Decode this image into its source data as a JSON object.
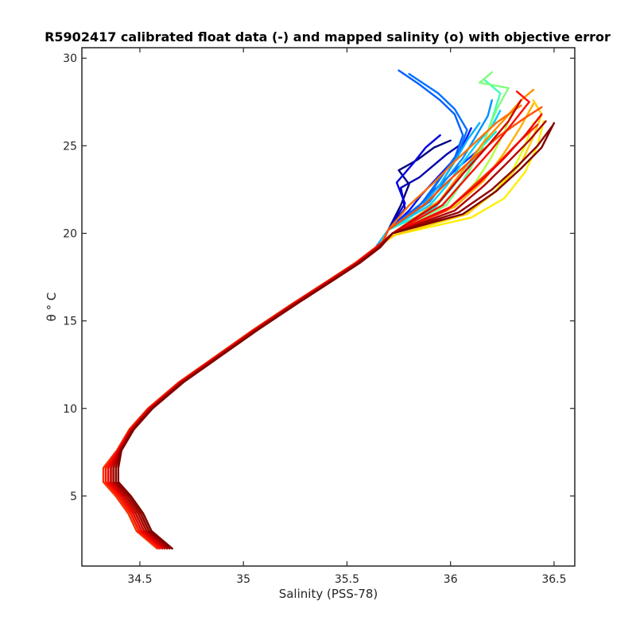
{
  "chart_data": {
    "type": "line",
    "title": "R5902417 calibrated float data (-) and mapped salinity (o) with objective error",
    "xlabel": "Salinity (PSS-78)",
    "ylabel": "θ ° C",
    "xlim": [
      34.22,
      36.6
    ],
    "ylim": [
      1.0,
      30.6
    ],
    "xticks": [
      34.5,
      35,
      35.5,
      36,
      36.5
    ],
    "xtick_labels": [
      "34.5",
      "35",
      "35.5",
      "36",
      "36.5"
    ],
    "yticks": [
      5,
      10,
      15,
      20,
      25,
      30
    ],
    "ytick_labels": [
      "5",
      "10",
      "15",
      "20",
      "25",
      "30"
    ],
    "grid": false,
    "colormap": "jet",
    "common_profile": {
      "s": [
        34.62,
        34.52,
        34.48,
        34.42,
        34.36,
        34.36,
        34.4,
        34.46,
        34.55,
        34.7,
        34.88,
        35.06,
        35.25,
        35.42,
        35.55,
        35.65
      ],
      "t": [
        2.0,
        3.0,
        4.0,
        5.0,
        5.8,
        6.6,
        7.6,
        8.8,
        10.0,
        11.5,
        13.0,
        14.5,
        16.0,
        17.3,
        18.3,
        19.2
      ]
    },
    "series": [
      {
        "color": "#000080",
        "s": [
          35.7,
          35.76,
          35.8,
          35.75,
          35.84,
          35.92,
          36.0
        ],
        "t": [
          20.2,
          21.6,
          22.8,
          23.6,
          24.2,
          24.9,
          25.3
        ]
      },
      {
        "color": "#0000b0",
        "s": [
          35.7,
          35.78,
          35.76,
          35.85,
          35.92,
          35.98,
          36.04
        ],
        "t": [
          20.2,
          21.4,
          22.6,
          23.2,
          23.9,
          24.5,
          25.0
        ]
      },
      {
        "color": "#0000e0",
        "s": [
          35.7,
          35.78,
          35.74,
          35.82,
          35.88,
          35.95
        ],
        "t": [
          20.2,
          21.7,
          22.9,
          24.0,
          24.9,
          25.6
        ]
      },
      {
        "color": "#0010ff",
        "s": [
          35.7,
          35.8,
          35.86,
          35.93,
          36.0,
          36.06,
          36.1
        ],
        "t": [
          20.2,
          21.3,
          22.2,
          23.1,
          24.0,
          25.0,
          26.0
        ]
      },
      {
        "color": "#0040ff",
        "s": [
          35.7,
          35.82,
          35.88,
          35.96,
          36.04,
          36.12,
          36.18
        ],
        "t": [
          20.2,
          21.2,
          22.0,
          22.9,
          23.8,
          24.6,
          25.4
        ]
      },
      {
        "color": "#0060ff",
        "s": [
          35.7,
          35.86,
          35.94,
          36.02,
          36.06,
          36.02,
          35.95,
          35.85,
          35.75
        ],
        "t": [
          20.2,
          21.7,
          23.0,
          24.3,
          25.6,
          26.8,
          27.6,
          28.5,
          29.3
        ]
      },
      {
        "color": "#0070ff",
        "s": [
          35.7,
          35.88,
          35.96,
          36.04,
          36.08,
          36.02,
          35.94,
          35.8
        ],
        "t": [
          20.2,
          21.9,
          23.3,
          24.6,
          25.9,
          27.1,
          28.0,
          29.1
        ]
      },
      {
        "color": "#0090ff",
        "s": [
          35.7,
          35.9,
          35.98,
          36.06,
          36.12,
          36.18,
          36.2
        ],
        "t": [
          20.2,
          21.8,
          23.1,
          24.3,
          25.5,
          26.7,
          27.6
        ]
      },
      {
        "color": "#00b0ff",
        "s": [
          35.7,
          35.86,
          35.95,
          36.02,
          36.08,
          36.14
        ],
        "t": [
          20.2,
          21.5,
          22.8,
          24.1,
          25.3,
          26.3
        ]
      },
      {
        "color": "#00d0ff",
        "s": [
          35.7,
          35.9,
          35.98,
          36.05,
          36.12,
          36.2,
          36.24
        ],
        "t": [
          20.2,
          21.6,
          22.7,
          23.9,
          25.0,
          26.1,
          27.0
        ]
      },
      {
        "color": "#10f0e0",
        "s": [
          35.7,
          35.92,
          36.0,
          36.08,
          36.14,
          36.22
        ],
        "t": [
          20.2,
          21.4,
          22.5,
          23.7,
          24.8,
          25.8
        ]
      },
      {
        "color": "#40ffb0",
        "s": [
          35.72,
          35.95,
          36.06,
          36.15,
          36.2,
          36.24,
          36.16
        ],
        "t": [
          20.0,
          21.4,
          23.0,
          24.8,
          26.5,
          28.0,
          28.8
        ]
      },
      {
        "color": "#80ff80",
        "s": [
          35.72,
          35.98,
          36.08,
          36.16,
          36.22,
          36.28,
          36.14,
          36.2
        ],
        "t": [
          20.0,
          21.6,
          23.3,
          25.2,
          27.0,
          28.3,
          28.6,
          29.2
        ]
      },
      {
        "color": "#b0ff40",
        "s": [
          35.72,
          36.0,
          36.12,
          36.2,
          36.26,
          36.3
        ],
        "t": [
          20.0,
          21.4,
          22.9,
          24.4,
          25.8,
          27.0
        ]
      },
      {
        "color": "#e0ff10",
        "s": [
          35.73,
          36.05,
          36.2,
          36.3,
          36.36,
          36.4
        ],
        "t": [
          19.9,
          21.0,
          22.2,
          23.6,
          25.0,
          26.3
        ]
      },
      {
        "color": "#ffee00",
        "s": [
          35.73,
          36.1,
          36.26,
          36.36,
          36.42,
          36.45
        ],
        "t": [
          19.9,
          20.9,
          22.0,
          23.5,
          25.0,
          26.4
        ]
      },
      {
        "color": "#ffd000",
        "s": [
          35.73,
          36.08,
          36.22,
          36.34,
          36.4,
          36.44,
          36.4
        ],
        "t": [
          19.9,
          21.1,
          22.4,
          24.0,
          25.5,
          26.8,
          27.6
        ]
      },
      {
        "color": "#ffb000",
        "s": [
          35.72,
          36.02,
          36.16,
          36.26,
          36.34,
          36.4
        ],
        "t": [
          20.0,
          21.5,
          23.0,
          24.6,
          26.1,
          27.4
        ]
      },
      {
        "color": "#ff9000",
        "s": [
          35.72,
          35.95,
          36.06,
          36.16,
          36.26,
          36.34,
          36.4
        ],
        "t": [
          20.0,
          21.9,
          23.6,
          25.2,
          26.5,
          27.6,
          28.2
        ]
      },
      {
        "color": "#ff7000",
        "s": [
          35.7,
          35.8,
          35.92,
          36.02,
          36.12,
          36.22,
          36.34
        ],
        "t": [
          20.2,
          21.6,
          22.9,
          24.1,
          25.2,
          26.3,
          27.3
        ]
      },
      {
        "color": "#ff5000",
        "s": [
          35.7,
          35.88,
          36.0,
          36.12,
          36.24,
          36.36,
          36.44
        ],
        "t": [
          20.2,
          21.7,
          23.1,
          24.4,
          25.6,
          26.6,
          27.2
        ]
      },
      {
        "color": "#ff3000",
        "s": [
          35.72,
          35.98,
          36.1,
          36.22,
          36.32,
          36.42
        ],
        "t": [
          20.0,
          21.3,
          22.6,
          23.9,
          25.1,
          26.2
        ]
      },
      {
        "color": "#ff1000",
        "s": [
          35.72,
          35.96,
          36.08,
          36.2,
          36.3,
          36.38,
          36.32
        ],
        "t": [
          20.0,
          21.6,
          23.2,
          24.8,
          26.3,
          27.5,
          28.1
        ]
      },
      {
        "color": "#f00000",
        "s": [
          35.72,
          36.0,
          36.14,
          36.26,
          36.36,
          36.44
        ],
        "t": [
          20.0,
          21.5,
          22.9,
          24.3,
          25.6,
          26.8
        ]
      },
      {
        "color": "#d00000",
        "s": [
          35.72,
          35.94,
          36.06,
          36.18,
          36.28,
          36.34
        ],
        "t": [
          20.0,
          21.7,
          23.4,
          25.0,
          26.4,
          27.6
        ]
      },
      {
        "color": "#b00000",
        "s": [
          35.72,
          36.02,
          36.16,
          36.28,
          36.38,
          36.46
        ],
        "t": [
          20.0,
          21.3,
          22.7,
          24.1,
          25.3,
          26.4
        ]
      },
      {
        "color": "#900000",
        "s": [
          35.72,
          36.04,
          36.2,
          36.32,
          36.42,
          36.49
        ],
        "t": [
          20.0,
          21.2,
          22.5,
          23.8,
          25.0,
          26.1
        ]
      },
      {
        "color": "#800000",
        "s": [
          35.72,
          36.06,
          36.22,
          36.34,
          36.44,
          36.5
        ],
        "t": [
          20.0,
          21.1,
          22.4,
          23.7,
          24.9,
          26.3
        ]
      }
    ]
  }
}
